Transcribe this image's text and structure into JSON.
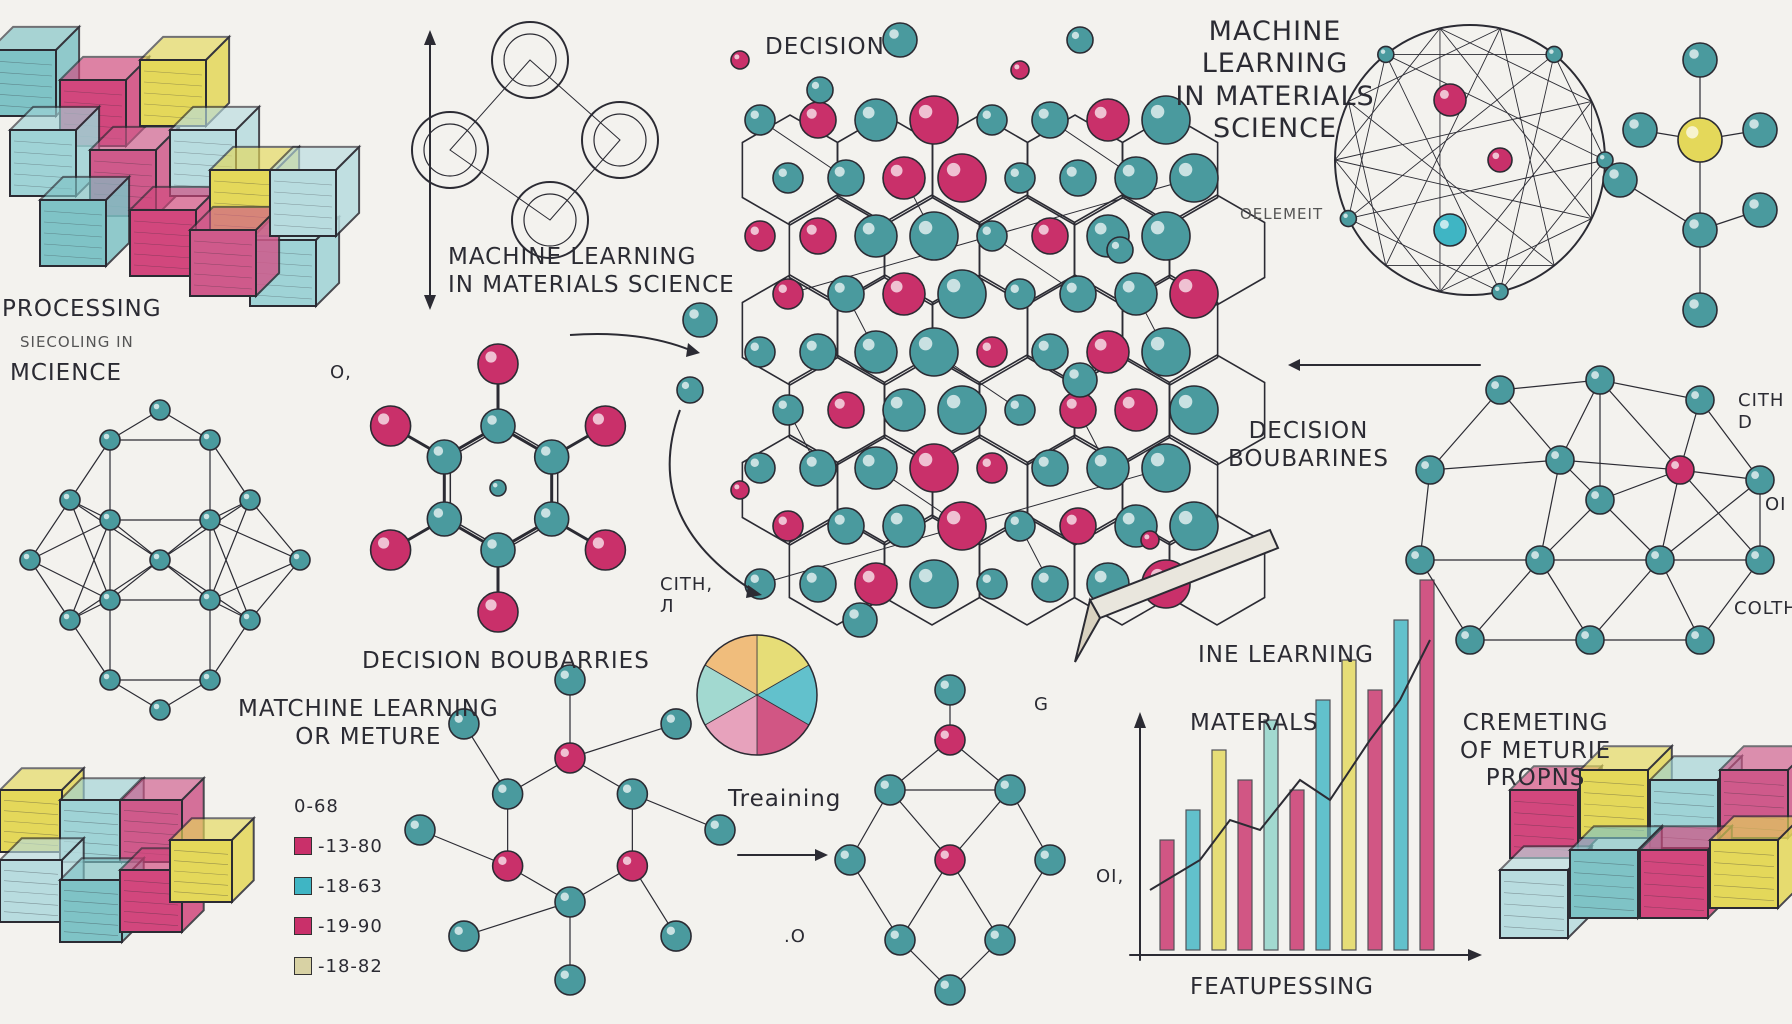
{
  "labels": {
    "processing": "PROCESSING",
    "processing_sub": "SIECOLING IN",
    "science_left": "MCIENCE",
    "ml_center": "MACHINE LEARNING\nIN MATERIALS SCIENCE",
    "decision_top": "DECISION",
    "ml_title": "MACHINE\nLEARNING\nIN MATERIALS\nSCIENCE",
    "element": "OELEMEIT",
    "o2": "O,",
    "decision_boundaries_left": "DECISION BOUBARRIES",
    "ml_mixture": "MATCHINE LEARNING\nOR METURE",
    "cith": "CITH,\nЛ",
    "training": "Treaining",
    "decision_boundaries_right": "DECISION\nBOUBARINES",
    "cith_right": "CITH\nD",
    "ol": "OI",
    "colth": "COLTH",
    "ine_learning": "INE LEARNING",
    "materals": "MATERALS",
    "cremeting": "CREMETING\nOF METURIE\nPROPNS",
    "featupessing": "FEATUPESSING",
    "o_axis": "OI,",
    "o_small": ".O",
    "g": "G"
  },
  "legend": [
    {
      "label": "0-68",
      "color": "#ffffff"
    },
    {
      "label": "-13-80",
      "color": "#c9306a"
    },
    {
      "label": "-18-63",
      "color": "#3fb5c4"
    },
    {
      "label": "-19-90",
      "color": "#c9306a"
    },
    {
      "label": "-18-82",
      "color": "#d8d2a4"
    }
  ],
  "colors": {
    "pink": "#c9306a",
    "teal": "#4a9a9e",
    "ink": "#2b2b33",
    "yellow": "#e4d85a",
    "cyan": "#3fb5c4"
  }
}
